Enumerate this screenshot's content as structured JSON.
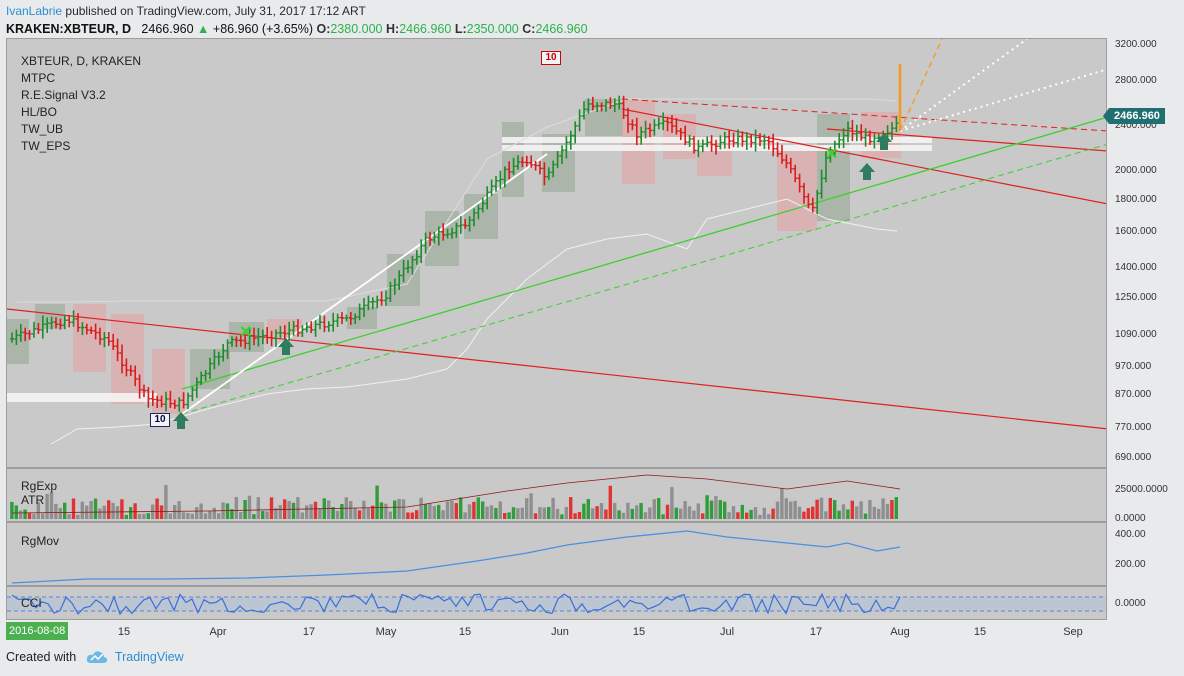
{
  "header": {
    "author": "IvanLabrie",
    "published_text": "published on TradingView.com, July 31, 2017 17:12 ART",
    "symbol": "KRAKEN:XBTEUR, D",
    "last": "2466.960",
    "change": "+86.960 (+3.65%)",
    "open_label": "O:",
    "open": "2380.000",
    "high_label": "H:",
    "high": "2466.960",
    "low_label": "L:",
    "low": "2350.000",
    "close_label": "C:",
    "close": "2466.960"
  },
  "legend": [
    "XBTEUR, D, KRAKEN",
    "MTPC",
    "R.E.Signal V3.2",
    "HL/BO",
    "TW_UB",
    "TW_EPS"
  ],
  "markers": {
    "top_box": "10",
    "low_box": "10"
  },
  "price_tag": "2466.960",
  "price_axis": [
    "3200.000",
    "2800.000",
    "2400.000",
    "2000.000",
    "1800.000",
    "1600.000",
    "1400.000",
    "1250.000",
    "1090.000",
    "970.000",
    "870.000",
    "770.000",
    "690.000"
  ],
  "panes": {
    "volume": {
      "labels": [
        "RgExp",
        "ATR"
      ],
      "axis": [
        "25000.0000",
        "0.0000"
      ]
    },
    "rgmov": {
      "label": "RgMov",
      "axis": [
        "400.00",
        "200.00"
      ]
    },
    "cci": {
      "label": "CCI",
      "axis": [
        "0.0000"
      ]
    }
  },
  "time_axis": {
    "current_date": "2016-08-08",
    "labels": [
      "15",
      "Apr",
      "17",
      "May",
      "15",
      "Jun",
      "15",
      "Jul",
      "17",
      "Aug",
      "15",
      "Sep"
    ]
  },
  "footer": {
    "created_with": "Created with",
    "brand": "TradingView"
  },
  "colors": {
    "up": "#1e8c2e",
    "down": "#d91c1c",
    "pane_bg": "#c9c9c9",
    "price_tag": "#1f6f73",
    "accent": "#2f8dd2"
  }
}
